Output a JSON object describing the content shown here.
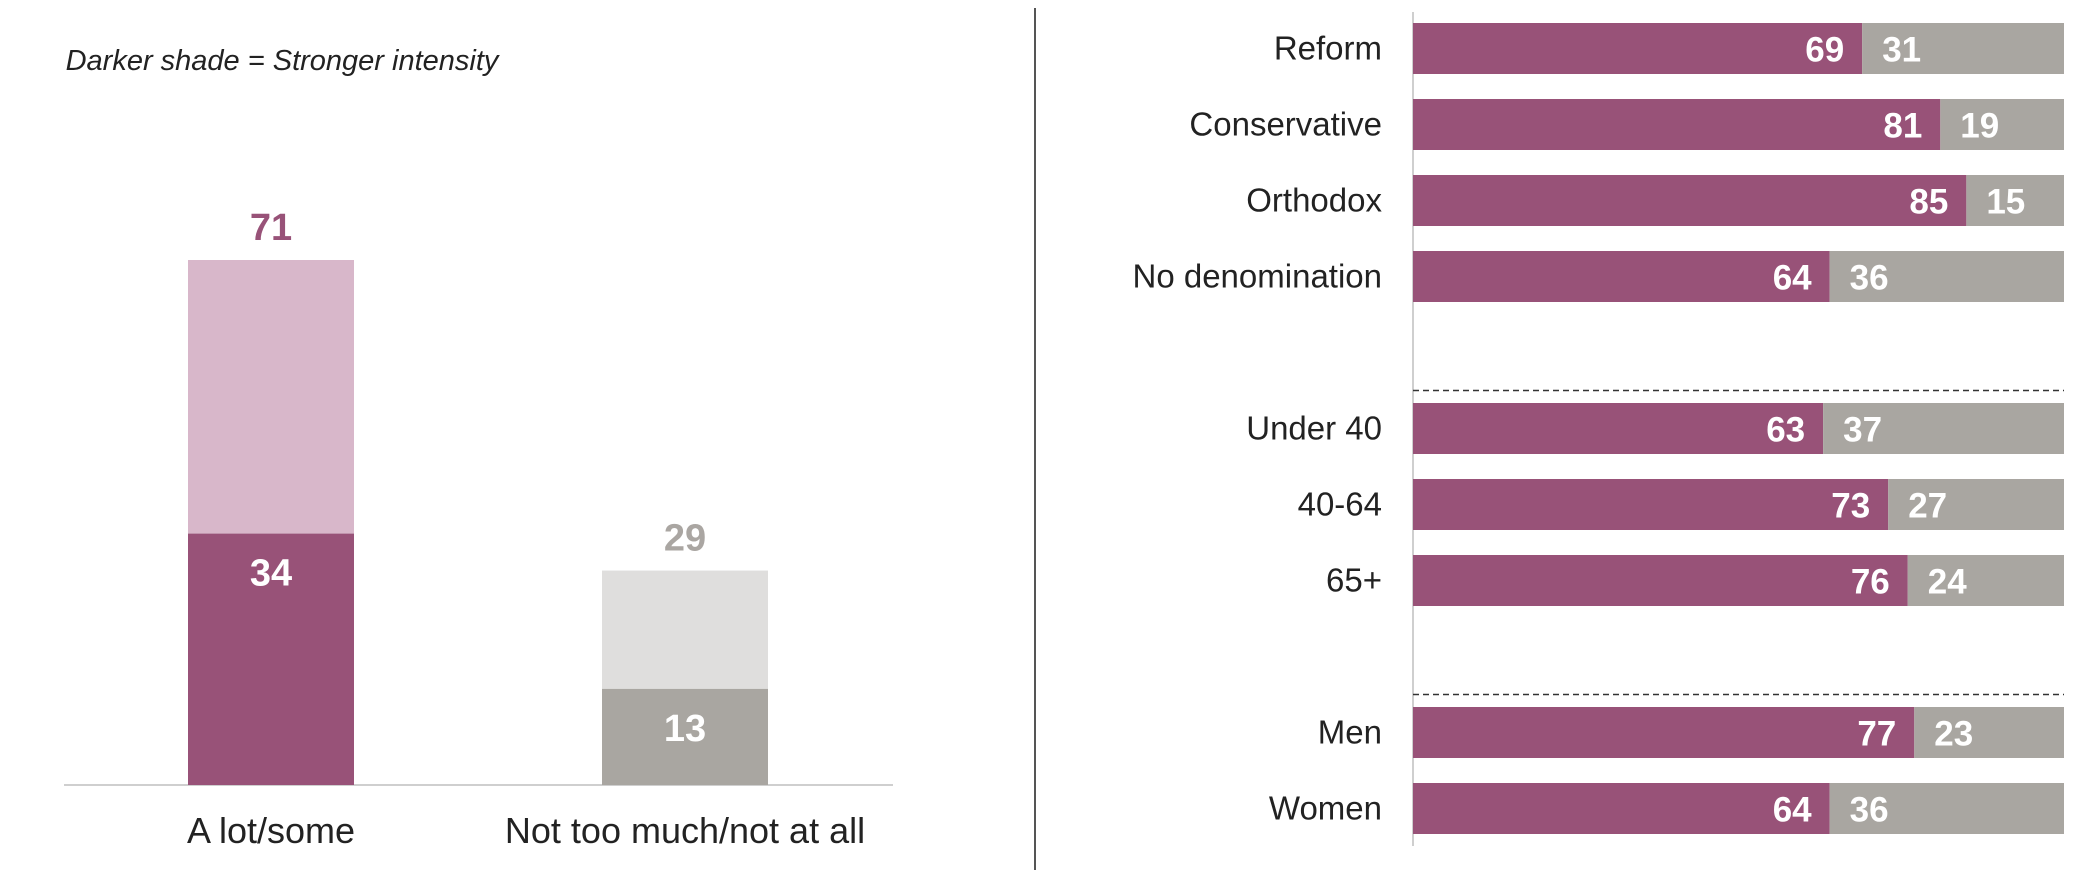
{
  "colors": {
    "purple_dark": "#985278",
    "purple_light": "#d8b7ca",
    "gray_dark": "#a9a6a1",
    "gray_light": "#dfdedd",
    "label_purple": "#985278",
    "label_gray": "#aaa6a2"
  },
  "chart_data": [
    {
      "type": "bar",
      "stacked": true,
      "note": "Darker shade = Stronger intensity",
      "categories": [
        "A lot/some",
        "Not too much/not at all"
      ],
      "totals": [
        71,
        29
      ],
      "strong": [
        34,
        13
      ],
      "title": "",
      "xlabel": "",
      "ylabel": "",
      "ylim": [
        0,
        80
      ],
      "grid": false
    },
    {
      "type": "bar",
      "orientation": "horizontal",
      "stacked": true,
      "groups": [
        {
          "rows": [
            {
              "label": "Reform",
              "values": [
                69,
                31
              ]
            },
            {
              "label": "Conservative",
              "values": [
                81,
                19
              ]
            },
            {
              "label": "Orthodox",
              "values": [
                85,
                15
              ]
            },
            {
              "label": "No denomination",
              "values": [
                64,
                36
              ]
            }
          ]
        },
        {
          "rows": [
            {
              "label": "Under 40",
              "values": [
                63,
                37
              ]
            },
            {
              "label": "40-64",
              "values": [
                73,
                27
              ]
            },
            {
              "label": "65+",
              "values": [
                76,
                24
              ]
            }
          ]
        },
        {
          "rows": [
            {
              "label": "Men",
              "values": [
                77,
                23
              ]
            },
            {
              "label": "Women",
              "values": [
                64,
                36
              ]
            }
          ]
        }
      ],
      "xlim": [
        0,
        100
      ],
      "grid": false,
      "legend": "none"
    }
  ]
}
